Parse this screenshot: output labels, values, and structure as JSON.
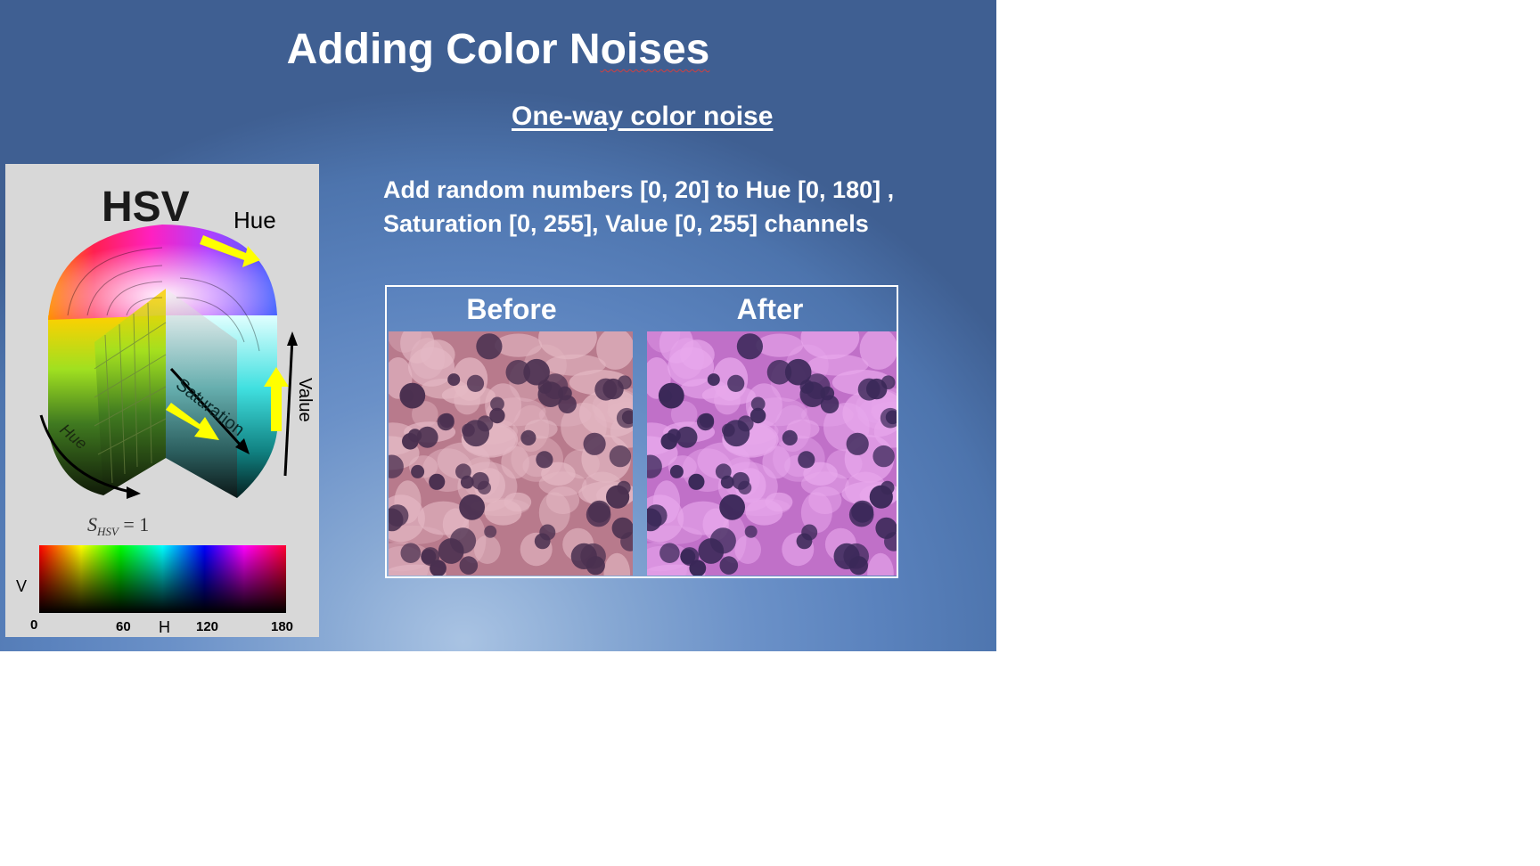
{
  "slide": {
    "title_part1": "Adding Color N",
    "title_part2": "oises",
    "subtitle": "One-way color noise",
    "description_line1": "Add random numbers [0, 20] to Hue [0, 180] ,",
    "description_line2": "Saturation [0, 255], Value [0, 255] channels"
  },
  "hsv_diagram": {
    "heading": "HSV",
    "hue_label": "Hue",
    "saturation_label": "Saturation",
    "value_label": "Value",
    "hue_arc_label": "Hue",
    "s_formula": "S",
    "s_subscript": "HSV",
    "s_rest": " = 1",
    "colorbar_v_label": "V",
    "colorbar_h_label": "H",
    "ticks": [
      "0",
      "60",
      "120",
      "180"
    ]
  },
  "comparison": {
    "before_label": "Before",
    "after_label": "After"
  },
  "colors": {
    "arrow_yellow": "#ffff00",
    "before_tissue": "#b87890",
    "after_tissue": "#c06ac8",
    "nucleus": "#3c2a52"
  }
}
